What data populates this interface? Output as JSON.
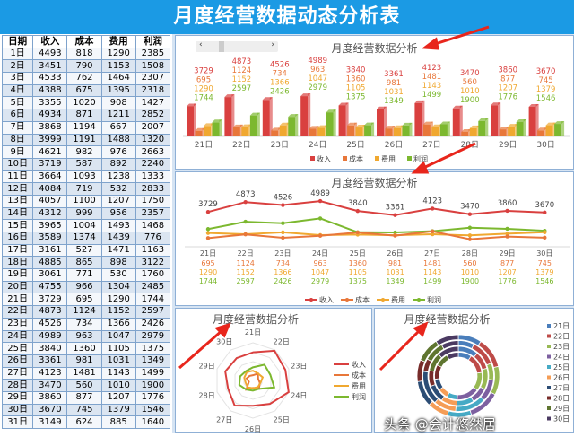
{
  "title": "月度经营数据动态分析表",
  "table": {
    "headers": [
      "日期",
      "收入",
      "成本",
      "费用",
      "利润"
    ],
    "rows": [
      [
        "1日",
        4493,
        818,
        1290,
        2385
      ],
      [
        "2日",
        3451,
        790,
        1153,
        1508
      ],
      [
        "3日",
        4533,
        762,
        1464,
        2307
      ],
      [
        "4日",
        4388,
        675,
        1395,
        2318
      ],
      [
        "5日",
        3355,
        1020,
        908,
        1427
      ],
      [
        "6日",
        4934,
        871,
        1211,
        2852
      ],
      [
        "7日",
        3868,
        1194,
        667,
        2007
      ],
      [
        "8日",
        3999,
        1191,
        1488,
        1320
      ],
      [
        "9日",
        4621,
        982,
        976,
        2663
      ],
      [
        "10日",
        3719,
        587,
        892,
        2240
      ],
      [
        "11日",
        3664,
        1093,
        1238,
        1333
      ],
      [
        "12日",
        4084,
        719,
        532,
        2833
      ],
      [
        "13日",
        4057,
        1100,
        1207,
        1750
      ],
      [
        "14日",
        4312,
        999,
        956,
        2357
      ],
      [
        "15日",
        3965,
        1004,
        1493,
        1468
      ],
      [
        "16日",
        3589,
        1374,
        1439,
        776
      ],
      [
        "17日",
        3161,
        527,
        1471,
        1163
      ],
      [
        "18日",
        4885,
        865,
        898,
        3122
      ],
      [
        "19日",
        3061,
        771,
        530,
        1760
      ],
      [
        "20日",
        4755,
        966,
        1304,
        2485
      ],
      [
        "21日",
        3729,
        695,
        1290,
        1744
      ],
      [
        "22日",
        4873,
        1124,
        1152,
        2597
      ],
      [
        "23日",
        4526,
        734,
        1366,
        2426
      ],
      [
        "24日",
        4989,
        963,
        1047,
        2979
      ],
      [
        "25日",
        3840,
        1360,
        1105,
        1375
      ],
      [
        "26日",
        3361,
        981,
        1031,
        1349
      ],
      [
        "27日",
        4123,
        1481,
        1143,
        1499
      ],
      [
        "28日",
        3470,
        560,
        1010,
        1900
      ],
      [
        "29日",
        3860,
        877,
        1207,
        1776
      ],
      [
        "30日",
        3670,
        745,
        1379,
        1546
      ],
      [
        "31日",
        3149,
        624,
        885,
        1640
      ]
    ]
  },
  "chart_title": "月度经营数据分析",
  "scroll": {
    "left": "‹",
    "right": "›"
  },
  "watermark": "头条 @会计悠然居",
  "chart_data": [
    {
      "type": "bar",
      "title": "月度经营数据分析",
      "categories": [
        "21日",
        "22日",
        "23日",
        "24日",
        "25日",
        "26日",
        "27日",
        "28日",
        "29日",
        "30日"
      ],
      "series": [
        {
          "name": "收入",
          "values": [
            3729,
            4873,
            4526,
            4989,
            3840,
            3361,
            4123,
            3470,
            3860,
            3670
          ],
          "color": "#d9403f"
        },
        {
          "name": "成本",
          "values": [
            695,
            1124,
            734,
            963,
            1360,
            981,
            1481,
            560,
            877,
            745
          ],
          "color": "#e8773a"
        },
        {
          "name": "费用",
          "values": [
            1290,
            1152,
            1366,
            1047,
            1105,
            1031,
            1143,
            1010,
            1207,
            1379
          ],
          "color": "#f0a830"
        },
        {
          "name": "利润",
          "values": [
            1744,
            2597,
            2426,
            2979,
            1375,
            1349,
            1499,
            1900,
            1776,
            1546
          ],
          "color": "#7cb82f"
        }
      ],
      "legend": "bottom"
    },
    {
      "type": "line",
      "title": "月度经营数据分析",
      "same_data_as": "bar",
      "legend": "bottom"
    },
    {
      "type": "radar",
      "title": "月度经营数据分析",
      "same_data_as": "bar",
      "legend": "right"
    },
    {
      "type": "doughnut",
      "title": "月度经营数据分析",
      "same_data_as": "bar",
      "legend": "right",
      "slice_colors": [
        "#4a7ebb",
        "#be4b48",
        "#98b954",
        "#7d60a0",
        "#46aac5",
        "#f59d56",
        "#2c4d75",
        "#772c2a",
        "#5f7530",
        "#4b3a62"
      ]
    }
  ]
}
